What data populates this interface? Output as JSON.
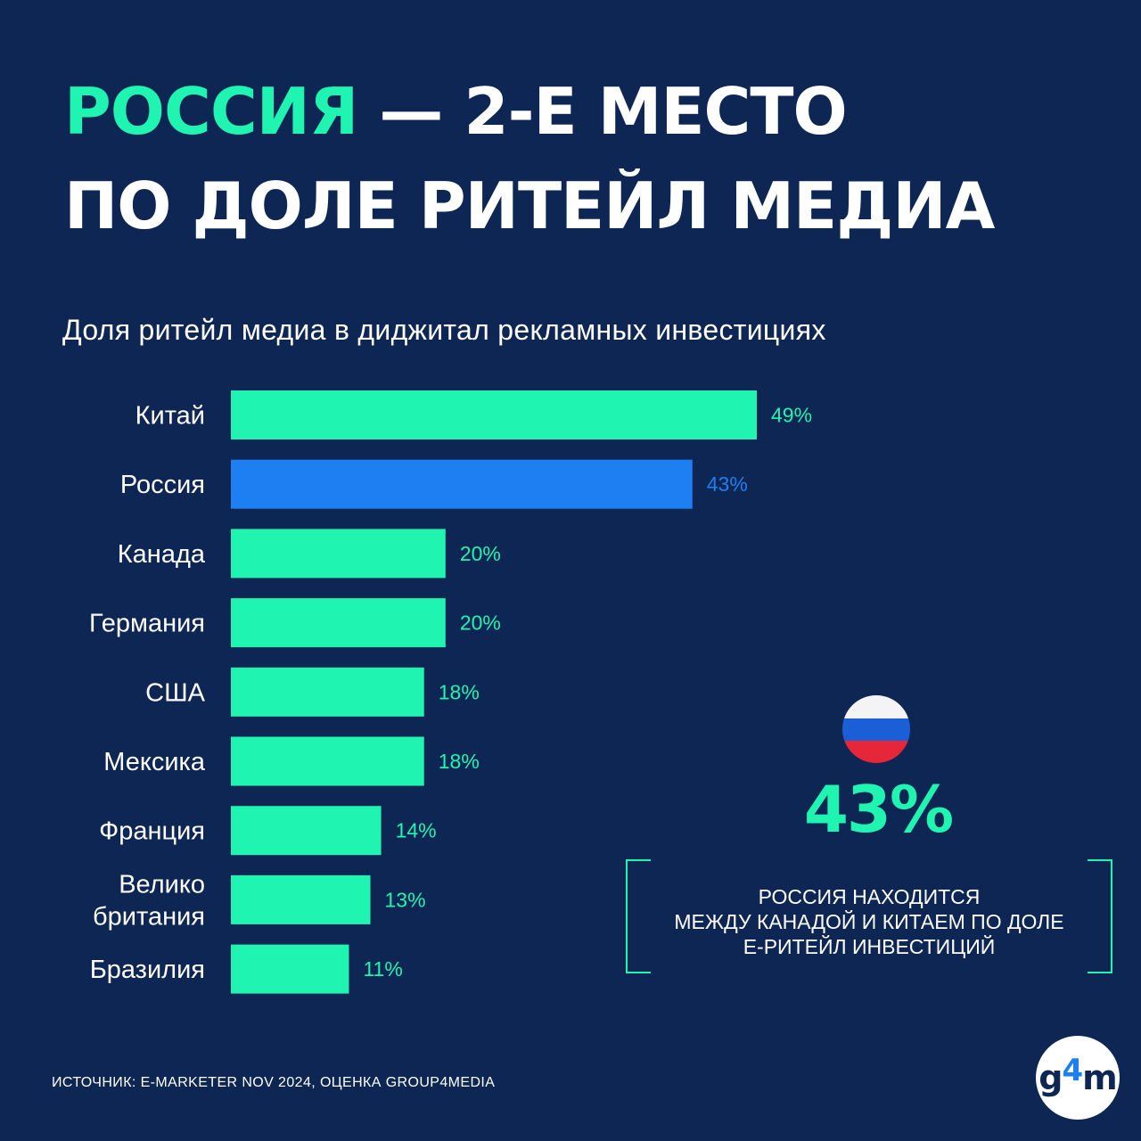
{
  "headline": {
    "accent": "РОССИЯ",
    "line1_rest": " — 2-Е МЕСТО",
    "line2": "ПО ДОЛЕ РИТЕЙЛ МЕДИА"
  },
  "chart_data": {
    "type": "bar",
    "orientation": "horizontal",
    "title": "Доля ритейл медиа в диджитал рекламных инвестициях",
    "categories": [
      [
        "Китай"
      ],
      [
        "Россия"
      ],
      [
        "Канада"
      ],
      [
        "Германия"
      ],
      [
        "США"
      ],
      [
        "Мексика"
      ],
      [
        "Франция"
      ],
      [
        "Велико",
        "британия"
      ],
      [
        "Бразилия"
      ]
    ],
    "values": [
      49,
      43,
      20,
      20,
      18,
      18,
      14,
      13,
      11
    ],
    "value_labels": [
      "49%",
      "43%",
      "20%",
      "20%",
      "18%",
      "18%",
      "14%",
      "13%",
      "11%"
    ],
    "highlight_index": 1,
    "colors": {
      "default": "#1ff5b0",
      "highlight": "#1d7ff2"
    },
    "xlim": [
      0,
      49
    ],
    "grid": false,
    "legend": "none"
  },
  "callout": {
    "flag_icon": "russia-flag-icon",
    "value": "43%",
    "lines": [
      "РОССИЯ НАХОДИТСЯ",
      "МЕЖДУ КАНАДОЙ  И КИТАЕМ ПО ДОЛЕ",
      "Е-РИТЕЙЛ ИНВЕСТИЦИЙ"
    ]
  },
  "source": "ИСТОЧНИК: E-MARKETER NOV 2024, ОЦЕНКА GROUP4MEDIA",
  "logo": {
    "g": "g",
    "four": "4",
    "m": "m"
  },
  "colors": {
    "background": "#0d2654",
    "accent": "#1ff5b0",
    "highlight": "#1d7ff2"
  }
}
